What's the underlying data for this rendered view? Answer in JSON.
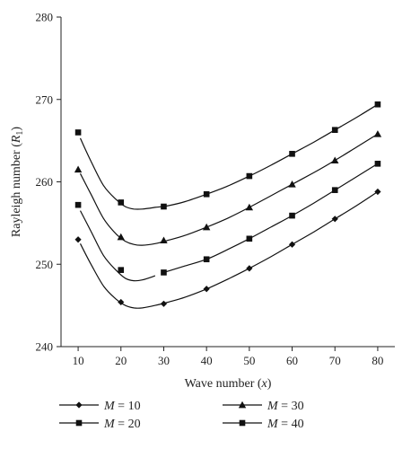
{
  "chart_data": {
    "type": "line",
    "xlabel_parts": {
      "text": "Wave number (",
      "var": "x",
      "close": ")"
    },
    "ylabel_parts": {
      "text": "Rayleigh number (",
      "var": "R",
      "sub": "1",
      "close": ")"
    },
    "xlim": [
      6,
      84
    ],
    "ylim": [
      240,
      280
    ],
    "xticks": [
      10,
      20,
      30,
      40,
      50,
      60,
      70,
      80
    ],
    "yticks": [
      240,
      250,
      260,
      270,
      280
    ],
    "grid": false,
    "legend_position": "bottom",
    "series": [
      {
        "name": "M = 10",
        "name_var": "M",
        "name_eq": " = 10",
        "marker": "diamond",
        "x": [
          10,
          20,
          30,
          40,
          50,
          60,
          70,
          80
        ],
        "y": [
          253.0,
          245.4,
          245.2,
          247.0,
          249.5,
          252.4,
          255.5,
          258.8
        ],
        "curve": [
          [
            10.5,
            252.5
          ],
          [
            13,
            250.0
          ],
          [
            16,
            247.3
          ],
          [
            19,
            245.7
          ],
          [
            21,
            245.0
          ],
          [
            23,
            244.7
          ],
          [
            25,
            244.7
          ],
          [
            28,
            245.0
          ],
          [
            31,
            245.4
          ],
          [
            35,
            246.0
          ],
          [
            40,
            247.0
          ],
          [
            45,
            248.2
          ],
          [
            50,
            249.5
          ],
          [
            55,
            250.9
          ],
          [
            60,
            252.4
          ],
          [
            65,
            253.9
          ],
          [
            70,
            255.5
          ],
          [
            75,
            257.1
          ],
          [
            80,
            258.8
          ]
        ]
      },
      {
        "name": "M = 20",
        "name_var": "M",
        "name_eq": " = 20",
        "marker": "square",
        "x": [
          10,
          20,
          30,
          40,
          50,
          60,
          70,
          80
        ],
        "y": [
          257.2,
          249.3,
          249.0,
          250.6,
          253.1,
          255.9,
          259.0,
          262.2
        ],
        "curve_segments": [
          [
            [
              10.5,
              256.5
            ],
            [
              13,
              254.0
            ],
            [
              16,
              251.0
            ],
            [
              19,
              249.2
            ],
            [
              21,
              248.3
            ],
            [
              23,
              248.0
            ],
            [
              25,
              248.1
            ],
            [
              28,
              248.6
            ]
          ],
          [
            [
              30,
              249.0
            ],
            [
              35,
              249.8
            ],
            [
              40,
              250.6
            ],
            [
              45,
              251.8
            ],
            [
              50,
              253.1
            ],
            [
              55,
              254.5
            ],
            [
              60,
              255.9
            ],
            [
              65,
              257.4
            ],
            [
              70,
              259.0
            ],
            [
              75,
              260.6
            ],
            [
              80,
              262.2
            ]
          ]
        ]
      },
      {
        "name": "M = 30",
        "name_var": "M",
        "name_eq": " = 30",
        "marker": "triangle",
        "x": [
          10,
          20,
          30,
          40,
          50,
          60,
          70,
          80
        ],
        "y": [
          261.5,
          253.3,
          252.9,
          254.5,
          256.9,
          259.7,
          262.6,
          265.8
        ],
        "curve": [
          [
            10.5,
            261.0
          ],
          [
            13,
            258.5
          ],
          [
            16,
            255.5
          ],
          [
            19,
            253.6
          ],
          [
            21,
            252.8
          ],
          [
            23,
            252.4
          ],
          [
            25,
            252.3
          ],
          [
            28,
            252.5
          ],
          [
            31,
            252.9
          ],
          [
            35,
            253.5
          ],
          [
            40,
            254.5
          ],
          [
            45,
            255.6
          ],
          [
            50,
            256.9
          ],
          [
            55,
            258.3
          ],
          [
            60,
            259.7
          ],
          [
            65,
            261.1
          ],
          [
            70,
            262.6
          ],
          [
            75,
            264.2
          ],
          [
            80,
            265.8
          ]
        ]
      },
      {
        "name": "M = 40",
        "name_var": "M",
        "name_eq": " = 40",
        "marker": "square",
        "x": [
          10,
          20,
          30,
          40,
          50,
          60,
          70,
          80
        ],
        "y": [
          266.0,
          257.5,
          257.0,
          258.5,
          260.7,
          263.4,
          266.3,
          269.4
        ],
        "curve": [
          [
            10.5,
            265.3
          ],
          [
            13,
            262.5
          ],
          [
            16,
            259.5
          ],
          [
            19,
            257.8
          ],
          [
            21,
            257.0
          ],
          [
            23,
            256.7
          ],
          [
            25,
            256.7
          ],
          [
            28,
            256.9
          ],
          [
            31,
            257.1
          ],
          [
            35,
            257.6
          ],
          [
            40,
            258.5
          ],
          [
            45,
            259.5
          ],
          [
            50,
            260.7
          ],
          [
            55,
            262.0
          ],
          [
            60,
            263.4
          ],
          [
            65,
            264.8
          ],
          [
            70,
            266.3
          ],
          [
            75,
            267.8
          ],
          [
            80,
            269.4
          ]
        ]
      }
    ]
  }
}
